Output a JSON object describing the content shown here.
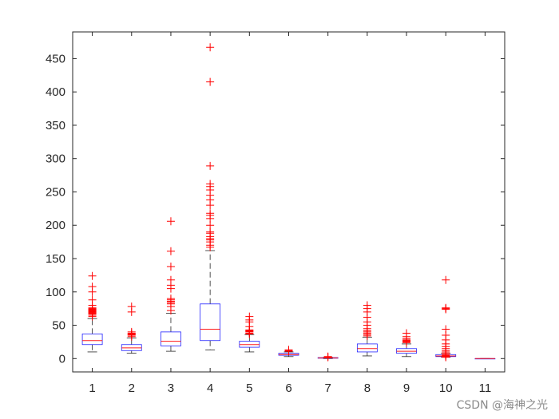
{
  "chart_data": {
    "type": "boxplot",
    "categories": [
      "1",
      "2",
      "3",
      "4",
      "5",
      "6",
      "7",
      "8",
      "9",
      "10",
      "11"
    ],
    "ylim": [
      -20,
      490
    ],
    "yticks": [
      0,
      50,
      100,
      150,
      200,
      250,
      300,
      350,
      400,
      450
    ],
    "grid": false,
    "colors": {
      "box": "#2323ff",
      "median": "#ff1a1a",
      "whisker": "#262626",
      "outlier": "#ff0000",
      "axis": "#262626"
    },
    "boxes": [
      {
        "category": "1",
        "lower_whisker": 10,
        "q1": 21,
        "median": 27,
        "q3": 37,
        "upper_whisker": 60,
        "outliers": [
          63,
          65,
          67,
          68,
          69,
          70,
          71,
          72,
          73,
          74,
          75,
          76,
          80,
          88,
          100,
          108,
          124
        ]
      },
      {
        "category": "2",
        "lower_whisker": 8,
        "q1": 12,
        "median": 16,
        "q3": 21,
        "upper_whisker": 31,
        "outliers": [
          33,
          35,
          36,
          37,
          38,
          40,
          70,
          78
        ]
      },
      {
        "category": "3",
        "lower_whisker": 11,
        "q1": 19,
        "median": 26,
        "q3": 40,
        "upper_whisker": 68,
        "outliers": [
          72,
          78,
          82,
          84,
          86,
          88,
          90,
          105,
          110,
          118,
          138,
          161,
          206
        ]
      },
      {
        "category": "4",
        "lower_whisker": 13,
        "q1": 27,
        "median": 44,
        "q3": 82,
        "upper_whisker": 162,
        "outliers": [
          167,
          170,
          175,
          178,
          180,
          183,
          188,
          190,
          200,
          210,
          215,
          218,
          230,
          238,
          245,
          253,
          258,
          262,
          289,
          415,
          467
        ]
      },
      {
        "category": "5",
        "lower_whisker": 10,
        "q1": 17,
        "median": 21,
        "q3": 26,
        "upper_whisker": 36,
        "outliers": [
          37,
          38,
          40,
          41,
          42,
          43,
          48,
          55,
          58,
          63
        ]
      },
      {
        "category": "6",
        "lower_whisker": 3,
        "q1": 5,
        "median": 6,
        "q3": 8,
        "upper_whisker": 10,
        "outliers": [
          11,
          12,
          13
        ]
      },
      {
        "category": "7",
        "lower_whisker": 0,
        "q1": 0.5,
        "median": 1,
        "q3": 1.5,
        "upper_whisker": 2,
        "outliers": [
          2,
          3
        ]
      },
      {
        "category": "8",
        "lower_whisker": 4,
        "q1": 10,
        "median": 15,
        "q3": 22,
        "upper_whisker": 32,
        "outliers": [
          34,
          36,
          38,
          40,
          42,
          45,
          50,
          55,
          62,
          70,
          75,
          80
        ]
      },
      {
        "category": "9",
        "lower_whisker": 3,
        "q1": 8,
        "median": 11,
        "q3": 15,
        "upper_whisker": 22,
        "outliers": [
          24,
          25,
          26,
          27,
          28,
          30,
          33,
          38
        ]
      },
      {
        "category": "10",
        "lower_whisker": 2,
        "q1": 3,
        "median": 4,
        "q3": 6,
        "upper_whisker": 8,
        "outliers": [
          2,
          3,
          5,
          6,
          8,
          10,
          12,
          15,
          18,
          22,
          28,
          35,
          44,
          74,
          75,
          76,
          118
        ]
      },
      {
        "category": "11",
        "lower_whisker": 0,
        "q1": 0,
        "median": 0,
        "q3": 0,
        "upper_whisker": 0,
        "outliers": []
      }
    ]
  },
  "watermark": "CSDN @海神之光"
}
